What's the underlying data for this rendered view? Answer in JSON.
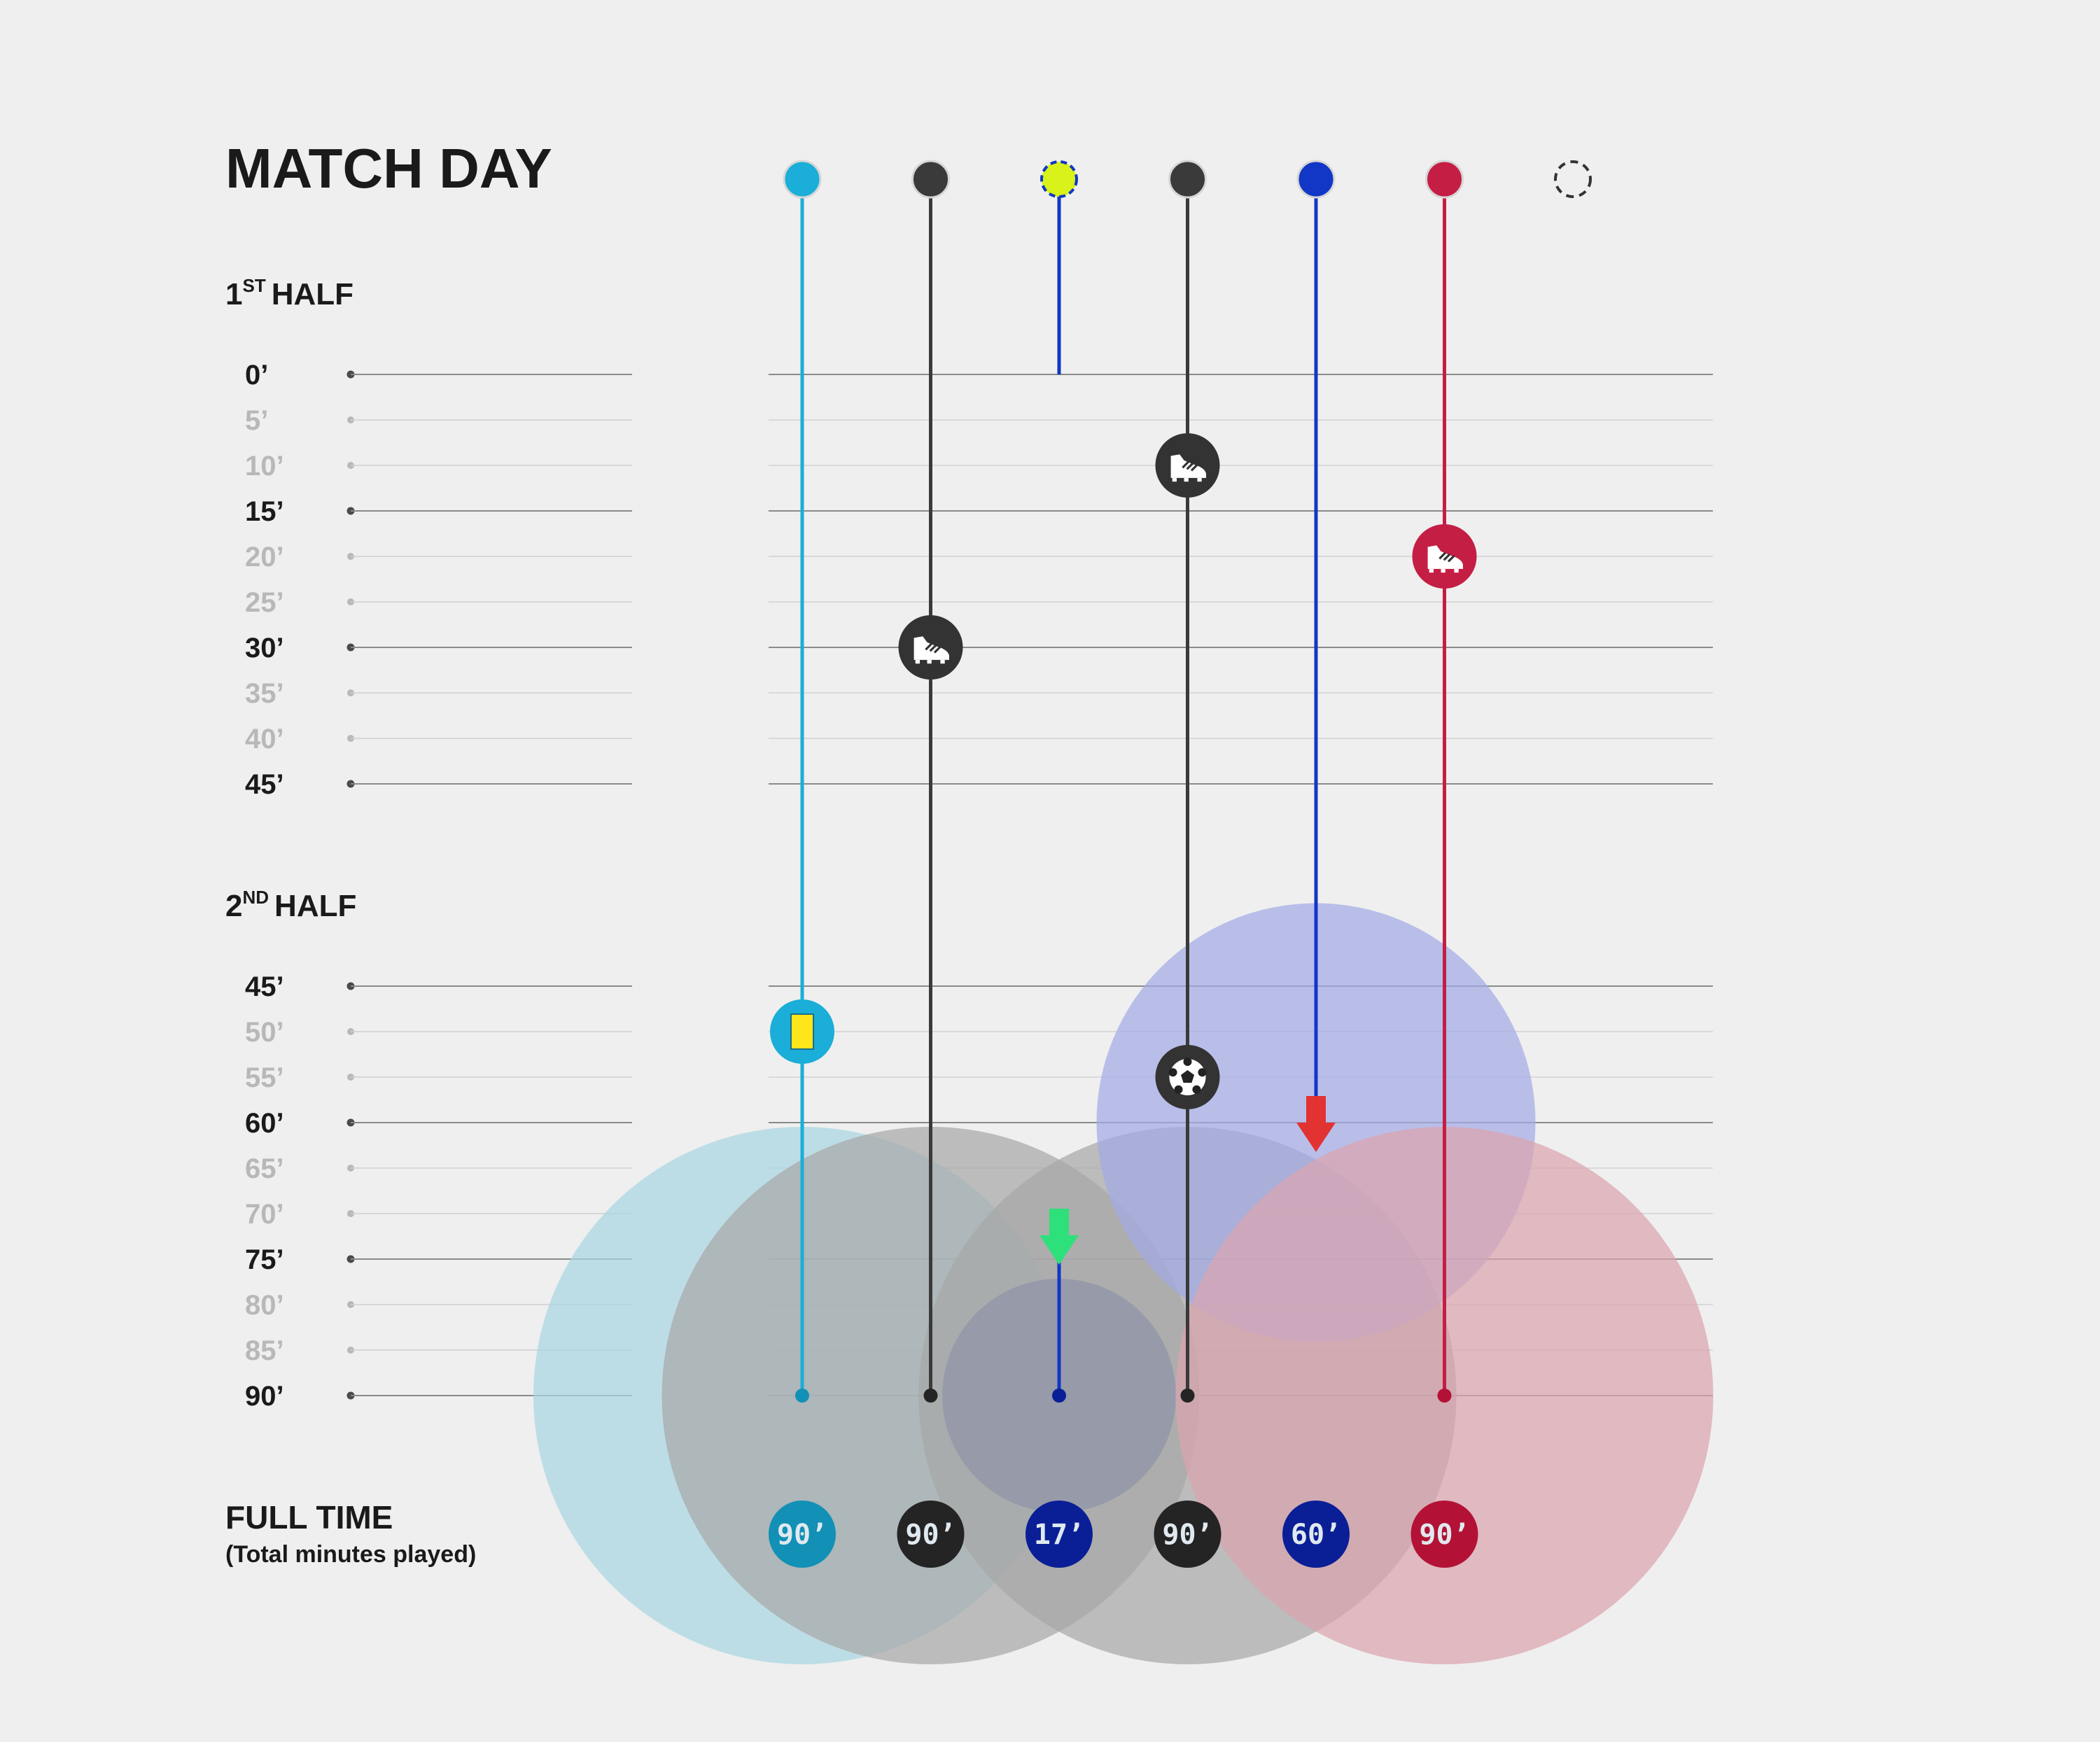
{
  "title": "MATCH DAY",
  "sections": {
    "first_half": {
      "num": "1",
      "sup": "ST",
      "label": "HALF"
    },
    "second_half": {
      "num": "2",
      "sup": "ND",
      "label": "HALF"
    },
    "full_time": {
      "label": "FULL TIME",
      "sublabel": "(Total minutes played)"
    }
  },
  "colors": {
    "background": "#efefef",
    "text": "#1a1a1a",
    "tick_muted": "#b8b8b8"
  },
  "chart_data": {
    "type": "timeline",
    "first_half_ticks": [
      "0’",
      "5’",
      "10’",
      "15’",
      "20’",
      "25’",
      "30’",
      "35’",
      "40’",
      "45’"
    ],
    "second_half_ticks": [
      "45’",
      "50’",
      "55’",
      "60’",
      "65’",
      "70’",
      "75’",
      "80’",
      "85’",
      "90’"
    ],
    "major_every_minutes": 15,
    "players": [
      {
        "color": "#1aaed8",
        "area_color": "#a9d6e2",
        "badge_color": "#1290b6",
        "start": 0,
        "end": 90,
        "total_label": "90’",
        "events": [
          {
            "minute": 50,
            "type": "yellow-card"
          }
        ]
      },
      {
        "color": "#3a3a3a",
        "area_color": "#a8a8a8",
        "badge_color": "#242424",
        "start": 0,
        "end": 90,
        "total_label": "90’",
        "events": [
          {
            "minute": 30,
            "type": "boot"
          }
        ]
      },
      {
        "color": "#1236c6",
        "marker_color": "#d8f21a",
        "area_color": "#4d5fa8",
        "badge_color": "#0a1f96",
        "start": 0,
        "end": 0,
        "sub_on": 73,
        "end2": 90,
        "total_label": "17’",
        "events": [
          {
            "minute": 73,
            "type": "sub-in"
          }
        ]
      },
      {
        "color": "#3a3a3a",
        "area_color": "#a8a8a8",
        "badge_color": "#242424",
        "start": 0,
        "end": 90,
        "total_label": "90’",
        "events": [
          {
            "minute": 10,
            "type": "boot"
          },
          {
            "minute": 55,
            "type": "goal"
          }
        ]
      },
      {
        "color": "#1236c6",
        "area_color": "#a3aae6",
        "badge_color": "#0a1f96",
        "start": 0,
        "end": 60,
        "total_label": "60’",
        "events": [
          {
            "minute": 60,
            "type": "sub-out"
          }
        ]
      },
      {
        "color": "#c41e44",
        "area_color": "#dba3ae",
        "badge_color": "#b31236",
        "start": 0,
        "end": 90,
        "total_label": "90’",
        "events": [
          {
            "minute": 20,
            "type": "boot"
          }
        ]
      },
      {
        "color": "#333333",
        "marker_style": "dashed",
        "start": null,
        "end": null,
        "total_label": "",
        "events": []
      }
    ]
  }
}
